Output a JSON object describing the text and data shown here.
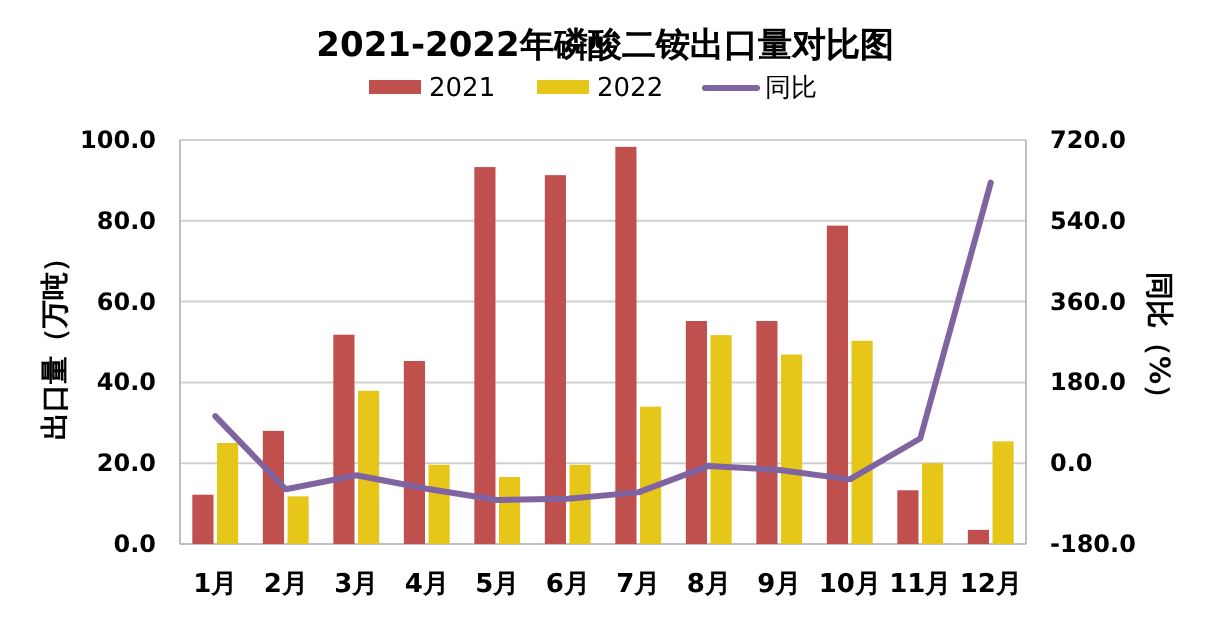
{
  "chart_data": {
    "type": "bar",
    "title": "2021-2022年磷酸二铵出口量对比图",
    "categories": [
      "1月",
      "2月",
      "3月",
      "4月",
      "5月",
      "6月",
      "7月",
      "8月",
      "9月",
      "10月",
      "11月",
      "12月"
    ],
    "series": [
      {
        "name": "2021",
        "color": "#c0504d",
        "values": [
          12.2,
          28.0,
          51.8,
          45.3,
          93.3,
          91.3,
          98.3,
          55.2,
          55.2,
          78.8,
          13.3,
          3.5
        ]
      },
      {
        "name": "2022",
        "color": "#e6c619",
        "values": [
          25.0,
          11.8,
          37.9,
          19.6,
          16.6,
          19.6,
          34.0,
          51.7,
          46.9,
          50.3,
          20.0,
          25.4
        ]
      },
      {
        "name": "同比",
        "type": "line",
        "axis": "y2",
        "color": "#8064a2",
        "values": [
          105,
          -58,
          -27,
          -57,
          -82,
          -79,
          -65,
          -6,
          -15,
          -36,
          55,
          625
        ]
      }
    ],
    "ylabel": "出口量（万吨）",
    "y2label": "同比（%）",
    "ylim": [
      0,
      100
    ],
    "yticks": [
      {
        "value": 0,
        "label": "0.0"
      },
      {
        "value": 20,
        "label": "20.0"
      },
      {
        "value": 40,
        "label": "40.0"
      },
      {
        "value": 60,
        "label": "60.0"
      },
      {
        "value": 80,
        "label": "80.0"
      },
      {
        "value": 100,
        "label": "100.0"
      }
    ],
    "y2lim": [
      -180,
      720
    ],
    "y2ticks": [
      {
        "value": -180,
        "label": "-180.0"
      },
      {
        "value": 0,
        "label": "0.0"
      },
      {
        "value": 180,
        "label": "180.0"
      },
      {
        "value": 360,
        "label": "360.0"
      },
      {
        "value": 540,
        "label": "540.0"
      },
      {
        "value": 720,
        "label": "720.0"
      }
    ],
    "grid": "y",
    "legend": "top"
  }
}
